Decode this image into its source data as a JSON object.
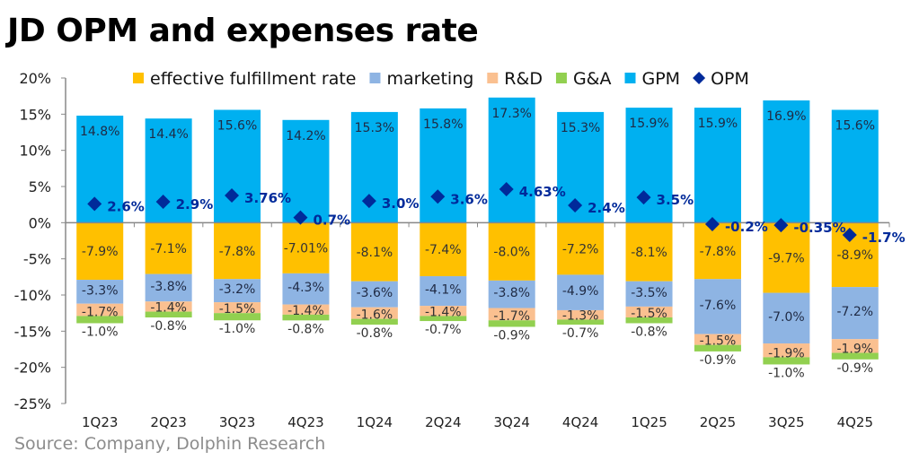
{
  "chart_data": {
    "type": "bar",
    "stacked": true,
    "title": "JD OPM and expenses rate",
    "source": "Source: Company,  Dolphin Research",
    "categories": [
      "1Q23",
      "2Q23",
      "3Q23",
      "4Q23",
      "1Q24",
      "2Q24",
      "3Q24",
      "4Q24",
      "1Q25",
      "2Q25",
      "3Q25",
      "4Q25"
    ],
    "ylim": [
      -25,
      20
    ],
    "yticks": [
      20,
      15,
      10,
      5,
      0,
      -5,
      -10,
      -15,
      -20,
      -25
    ],
    "ytick_labels": [
      "20%",
      "15%",
      "10%",
      "5%",
      "0%",
      "-5%",
      "-10%",
      "-15%",
      "-20%",
      "-25%"
    ],
    "legend_position": "top",
    "series": [
      {
        "name": "effective fulfillment rate",
        "color": "#FFC000",
        "values": [
          -7.9,
          -7.1,
          -7.8,
          -7.01,
          -8.1,
          -7.4,
          -8.0,
          -7.2,
          -8.1,
          -7.8,
          -9.7,
          -8.9
        ],
        "labels": [
          "-7.9%",
          "-7.1%",
          "-7.8%",
          "-7.01%",
          "-8.1%",
          "-7.4%",
          "-8.0%",
          "-7.2%",
          "-8.1%",
          "-7.8%",
          "-9.7%",
          "-8.9%"
        ]
      },
      {
        "name": "marketing",
        "color": "#8EB4E3",
        "values": [
          -3.3,
          -3.8,
          -3.2,
          -4.3,
          -3.6,
          -4.1,
          -3.8,
          -4.9,
          -3.5,
          -7.6,
          -7.0,
          -7.2
        ],
        "labels": [
          "-3.3%",
          "-3.8%",
          "-3.2%",
          "-4.3%",
          "-3.6%",
          "-4.1%",
          "-3.8%",
          "-4.9%",
          "-3.5%",
          "-7.6%",
          "-7.0%",
          "-7.2%"
        ]
      },
      {
        "name": "R&D",
        "color": "#FAC090",
        "values": [
          -1.7,
          -1.4,
          -1.5,
          -1.4,
          -1.6,
          -1.4,
          -1.7,
          -1.3,
          -1.5,
          -1.5,
          -1.9,
          -1.9
        ],
        "labels": [
          "-1.7%",
          "-1.4%",
          "-1.5%",
          "-1.4%",
          "-1.6%",
          "-1.4%",
          "-1.7%",
          "-1.3%",
          "-1.5%",
          "-1.5%",
          "-1.9%",
          "-1.9%"
        ]
      },
      {
        "name": "G&A",
        "color": "#92D050",
        "values": [
          -1.0,
          -0.8,
          -1.0,
          -0.8,
          -0.8,
          -0.7,
          -0.9,
          -0.7,
          -0.8,
          -0.9,
          -1.0,
          -0.9
        ],
        "labels": [
          "-1.0%",
          "-0.8%",
          "-1.0%",
          "-0.8%",
          "-0.8%",
          "-0.7%",
          "-0.9%",
          "-0.7%",
          "-0.8%",
          "-0.9%",
          "-1.0%",
          "-0.9%"
        ]
      },
      {
        "name": "GPM",
        "color": "#00B0F0",
        "values": [
          14.8,
          14.4,
          15.6,
          14.2,
          15.3,
          15.8,
          17.3,
          15.3,
          15.9,
          15.9,
          16.9,
          15.6
        ],
        "labels": [
          "14.8%",
          "14.4%",
          "15.6%",
          "14.2%",
          "15.3%",
          "15.8%",
          "17.3%",
          "15.3%",
          "15.9%",
          "15.9%",
          "16.9%",
          "15.6%"
        ]
      },
      {
        "name": "OPM",
        "color": "#002A9A",
        "marker": "diamond",
        "values": [
          2.6,
          2.9,
          3.76,
          0.7,
          3.0,
          3.6,
          4.63,
          2.4,
          3.5,
          -0.2,
          -0.35,
          -1.7
        ],
        "labels": [
          "2.6%",
          "2.9%",
          "3.76%",
          "0.7%",
          "3.0%",
          "3.6%",
          "4.63%",
          "2.4%",
          "3.5%",
          "-0.2%",
          "-0.35%",
          "-1.7%"
        ]
      }
    ]
  }
}
